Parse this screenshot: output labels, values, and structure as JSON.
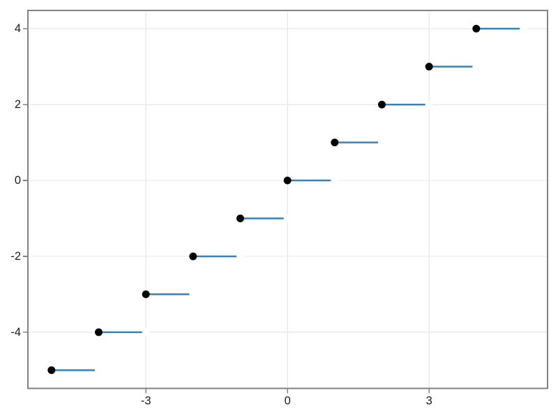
{
  "chart_data": {
    "type": "line",
    "subtype": "step-function-scatter",
    "title": "",
    "xlabel": "",
    "ylabel": "",
    "grid": true,
    "legend": false,
    "xlim": [
      -5.5,
      5.51
    ],
    "ylim": [
      -5.48,
      4.48
    ],
    "x_ticks": [
      -3,
      0,
      3
    ],
    "y_ticks": [
      -4,
      -2,
      0,
      2,
      4
    ],
    "x_tick_labels": [
      "-3",
      "0",
      "3"
    ],
    "y_tick_labels": [
      "-4",
      "-2",
      "0",
      "2",
      "4"
    ],
    "steps": [
      {
        "y": -5,
        "x_closed": -5,
        "x_open": -4
      },
      {
        "y": -4,
        "x_closed": -4,
        "x_open": -3
      },
      {
        "y": -3,
        "x_closed": -3,
        "x_open": -2
      },
      {
        "y": -2,
        "x_closed": -2,
        "x_open": -1
      },
      {
        "y": -1,
        "x_closed": -1,
        "x_open": 0
      },
      {
        "y": 0,
        "x_closed": 0,
        "x_open": 1
      },
      {
        "y": 1,
        "x_closed": 1,
        "x_open": 2
      },
      {
        "y": 2,
        "x_closed": 2,
        "x_open": 3
      },
      {
        "y": 3,
        "x_closed": 3,
        "x_open": 4
      },
      {
        "y": 4,
        "x_closed": 4,
        "x_open": 5
      }
    ],
    "colors": {
      "line": "#3182bd",
      "closed_marker": "#000000",
      "open_marker": "#ffffff",
      "spine": "#828282",
      "grid": "#eaeaea",
      "tick": "#828282",
      "tick_label": "#1a1a1a",
      "background": "#ffffff"
    }
  }
}
